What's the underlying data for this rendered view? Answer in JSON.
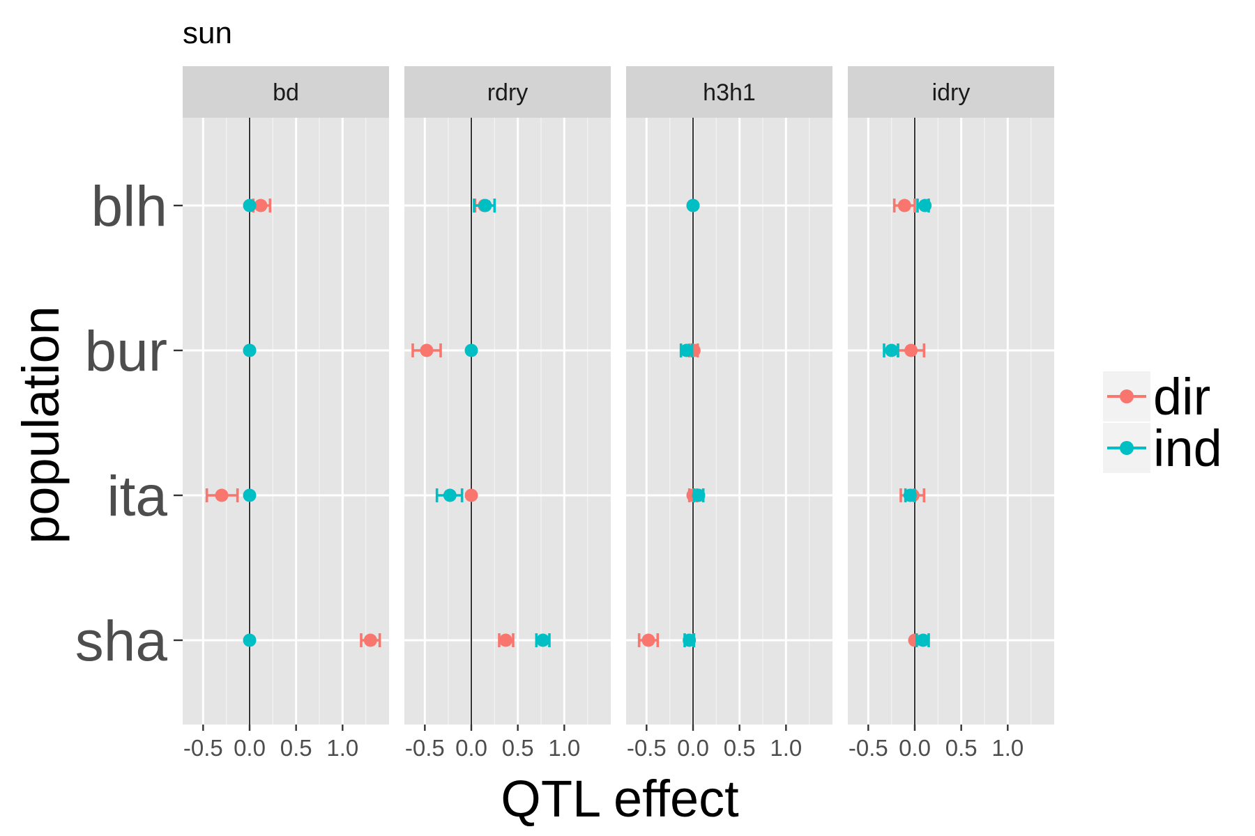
{
  "chart_data": {
    "type": "scatter",
    "title": "sun",
    "xlabel": "QTL effect",
    "ylabel": "population",
    "xlim": [
      -0.72,
      1.5
    ],
    "x_ticks": [
      -0.5,
      0.0,
      0.5,
      1.0
    ],
    "x_tick_labels": [
      "-0.5",
      "0.0",
      "0.5",
      "1.0"
    ],
    "categories": [
      "blh",
      "bur",
      "ita",
      "sha"
    ],
    "grid": true,
    "reference_line": 0,
    "legend_position": "right",
    "colors": {
      "dir": "#F8766D",
      "ind": "#00BFC4"
    },
    "facets": [
      {
        "label": "bd",
        "series": [
          {
            "name": "dir",
            "values": [
              {
                "population": "blh",
                "x": 0.12,
                "lo": 0.04,
                "hi": 0.22
              },
              {
                "population": "bur",
                "x": 0.0,
                "lo": 0.0,
                "hi": 0.0
              },
              {
                "population": "ita",
                "x": -0.3,
                "lo": -0.46,
                "hi": -0.13
              },
              {
                "population": "sha",
                "x": 1.3,
                "lo": 1.2,
                "hi": 1.4
              }
            ]
          },
          {
            "name": "ind",
            "values": [
              {
                "population": "blh",
                "x": 0.0,
                "lo": 0.0,
                "hi": 0.0
              },
              {
                "population": "bur",
                "x": 0.0,
                "lo": 0.0,
                "hi": 0.0
              },
              {
                "population": "ita",
                "x": 0.0,
                "lo": 0.0,
                "hi": 0.0
              },
              {
                "population": "sha",
                "x": 0.0,
                "lo": 0.0,
                "hi": 0.0
              }
            ]
          }
        ]
      },
      {
        "label": "rdry",
        "series": [
          {
            "name": "dir",
            "values": [
              {
                "population": "blh",
                "x": 0.14,
                "lo": 0.04,
                "hi": 0.25
              },
              {
                "population": "bur",
                "x": -0.48,
                "lo": -0.63,
                "hi": -0.33
              },
              {
                "population": "ita",
                "x": 0.0,
                "lo": 0.0,
                "hi": 0.0
              },
              {
                "population": "sha",
                "x": 0.37,
                "lo": 0.3,
                "hi": 0.45
              }
            ]
          },
          {
            "name": "ind",
            "values": [
              {
                "population": "blh",
                "x": 0.15,
                "lo": 0.03,
                "hi": 0.25
              },
              {
                "population": "bur",
                "x": 0.0,
                "lo": 0.0,
                "hi": 0.0
              },
              {
                "population": "ita",
                "x": -0.23,
                "lo": -0.37,
                "hi": -0.1
              },
              {
                "population": "sha",
                "x": 0.77,
                "lo": 0.7,
                "hi": 0.84
              }
            ]
          }
        ]
      },
      {
        "label": "h3h1",
        "series": [
          {
            "name": "dir",
            "values": [
              {
                "population": "blh",
                "x": 0.0,
                "lo": 0.0,
                "hi": 0.0
              },
              {
                "population": "bur",
                "x": 0.01,
                "lo": -0.04,
                "hi": 0.05
              },
              {
                "population": "ita",
                "x": 0.0,
                "lo": -0.04,
                "hi": 0.04
              },
              {
                "population": "sha",
                "x": -0.48,
                "lo": -0.58,
                "hi": -0.38
              }
            ]
          },
          {
            "name": "ind",
            "values": [
              {
                "population": "blh",
                "x": 0.0,
                "lo": 0.0,
                "hi": 0.0
              },
              {
                "population": "bur",
                "x": -0.07,
                "lo": -0.13,
                "hi": -0.01
              },
              {
                "population": "ita",
                "x": 0.06,
                "lo": 0.01,
                "hi": 0.11
              },
              {
                "population": "sha",
                "x": -0.04,
                "lo": -0.09,
                "hi": 0.01
              }
            ]
          }
        ]
      },
      {
        "label": "idry",
        "series": [
          {
            "name": "dir",
            "values": [
              {
                "population": "blh",
                "x": -0.11,
                "lo": -0.22,
                "hi": 0.0
              },
              {
                "population": "bur",
                "x": -0.04,
                "lo": -0.18,
                "hi": 0.1
              },
              {
                "population": "ita",
                "x": -0.02,
                "lo": -0.15,
                "hi": 0.1
              },
              {
                "population": "sha",
                "x": 0.0,
                "lo": 0.0,
                "hi": 0.0
              }
            ]
          },
          {
            "name": "ind",
            "values": [
              {
                "population": "blh",
                "x": 0.11,
                "lo": 0.03,
                "hi": 0.15
              },
              {
                "population": "bur",
                "x": -0.25,
                "lo": -0.33,
                "hi": -0.18
              },
              {
                "population": "ita",
                "x": -0.05,
                "lo": -0.1,
                "hi": 0.0
              },
              {
                "population": "sha",
                "x": 0.09,
                "lo": 0.02,
                "hi": 0.15
              }
            ]
          }
        ]
      }
    ]
  }
}
